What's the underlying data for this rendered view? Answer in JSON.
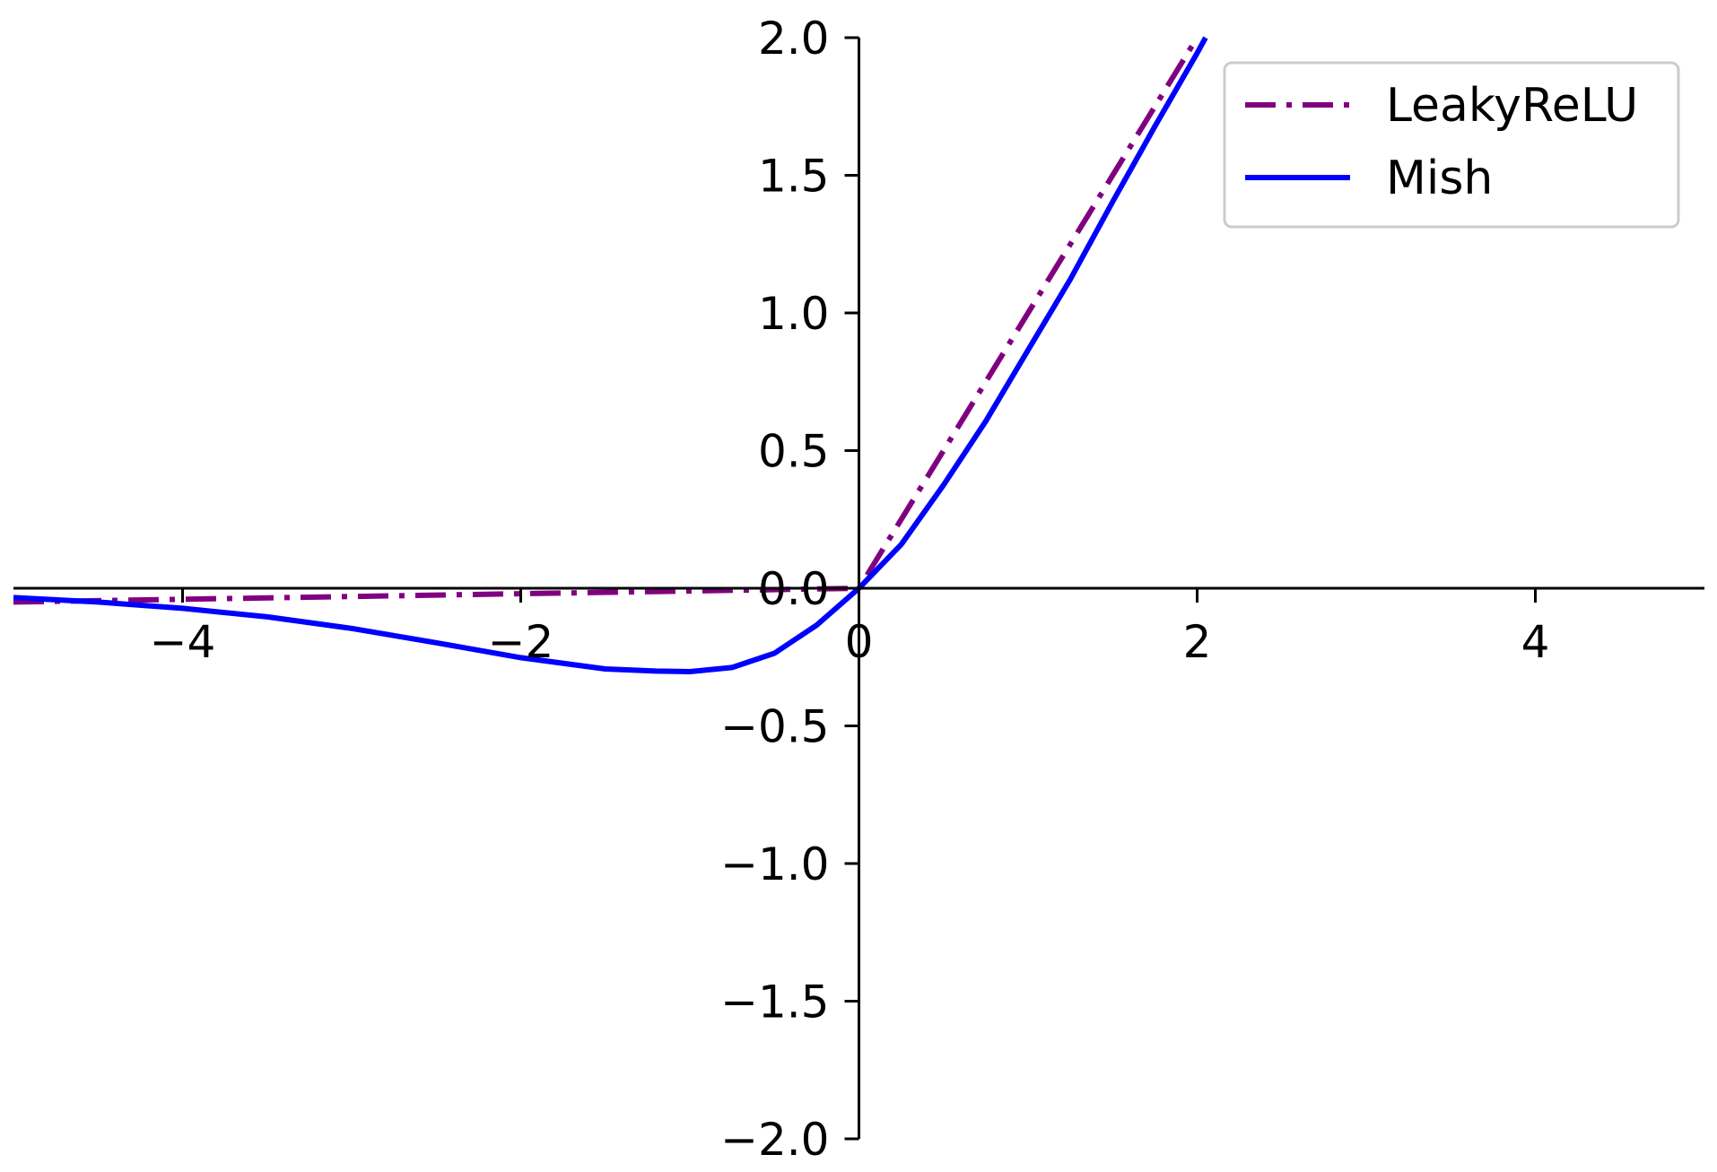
{
  "chart_data": {
    "type": "line",
    "title": "",
    "xlabel": "",
    "ylabel": "",
    "xlim": [
      -5,
      5
    ],
    "ylim": [
      -2,
      2
    ],
    "grid": false,
    "spines": "centered",
    "legend": {
      "position": "top-right"
    },
    "xticks": [
      {
        "value": -4,
        "label": "−4"
      },
      {
        "value": -2,
        "label": "−2"
      },
      {
        "value": 0,
        "label": "0"
      },
      {
        "value": 2,
        "label": "2"
      },
      {
        "value": 4,
        "label": "4"
      }
    ],
    "yticks": [
      {
        "value": -2.0,
        "label": "−2.0"
      },
      {
        "value": -1.5,
        "label": "−1.5"
      },
      {
        "value": -1.0,
        "label": "−1.0"
      },
      {
        "value": -0.5,
        "label": "−0.5"
      },
      {
        "value": 0.0,
        "label": "0.0"
      },
      {
        "value": 0.5,
        "label": "0.5"
      },
      {
        "value": 1.0,
        "label": "1.0"
      },
      {
        "value": 1.5,
        "label": "1.5"
      },
      {
        "value": 2.0,
        "label": "2.0"
      }
    ],
    "series": [
      {
        "name": "LeakyReLU",
        "color": "#800080",
        "linestyle": "dashdot",
        "x": [
          -5,
          -4,
          -3,
          -2,
          -1,
          0,
          0.5,
          1,
          1.5,
          2
        ],
        "y": [
          -0.05,
          -0.04,
          -0.03,
          -0.02,
          -0.01,
          0,
          0.5,
          1,
          1.5,
          2
        ]
      },
      {
        "name": "Mish",
        "color": "#0000ff",
        "linestyle": "solid",
        "x": [
          -5,
          -4.5,
          -4,
          -3.5,
          -3,
          -2.5,
          -2,
          -1.5,
          -1.2,
          -1,
          -0.75,
          -0.5,
          -0.25,
          0,
          0.25,
          0.5,
          0.75,
          1,
          1.25,
          1.5,
          1.75,
          2,
          2.05
        ],
        "y": [
          -0.034,
          -0.05,
          -0.073,
          -0.104,
          -0.146,
          -0.198,
          -0.252,
          -0.293,
          -0.301,
          -0.303,
          -0.288,
          -0.236,
          -0.134,
          0,
          0.159,
          0.375,
          0.607,
          0.865,
          1.122,
          1.404,
          1.678,
          1.944,
          2.0
        ]
      }
    ]
  }
}
